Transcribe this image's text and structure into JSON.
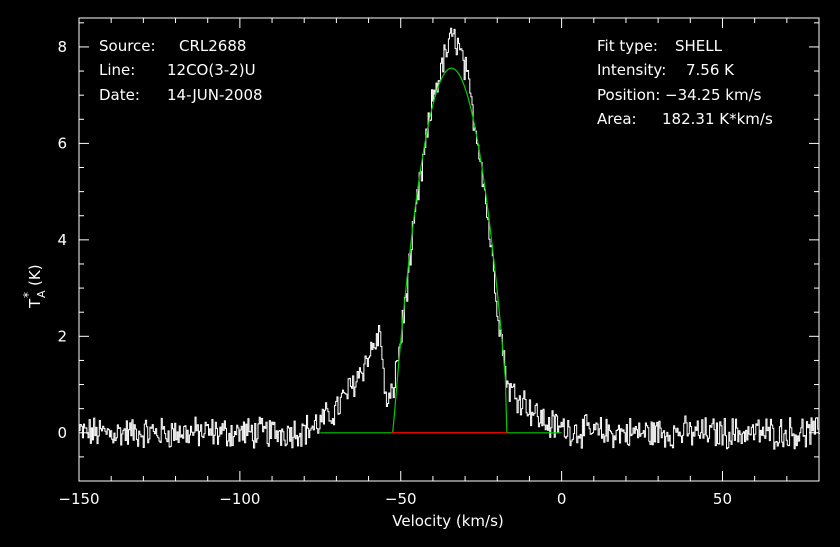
{
  "info_left": {
    "source_label": "Source:",
    "source_value": "CRL2688",
    "line_label": "Line:",
    "line_value": "12CO(3-2)U",
    "date_label": "Date:",
    "date_value": "14-JUN-2008"
  },
  "info_right": {
    "fit_label": "Fit type:",
    "fit_value": "SHELL",
    "intensity_label": "Intensity:",
    "intensity_value": "7.56 K",
    "position_label": "Position:",
    "position_value": "−34.25 km/s",
    "area_label": "Area:",
    "area_value": "182.31 K*km/s"
  },
  "chart_data": {
    "type": "line",
    "xlabel": "Velocity (km/s)",
    "ylabel_main": "T",
    "ylabel_sup": "*",
    "ylabel_sub": "A",
    "ylabel_unit": "(K)",
    "xlim": [
      -150,
      80
    ],
    "ylim": [
      -1,
      8.6
    ],
    "x_ticks": [
      -150,
      -100,
      -50,
      0,
      50
    ],
    "x_tick_labels": [
      "−150",
      "−100",
      "−50",
      "0",
      "50"
    ],
    "y_ticks": [
      0,
      2,
      4,
      6,
      8
    ],
    "y_tick_labels": [
      "0",
      "2",
      "4",
      "6",
      "8"
    ],
    "colors": {
      "spectrum": "#ffffff",
      "fit": "#00cc00",
      "baseline": "#ff0000",
      "axes": "#ffffff"
    },
    "series": [
      {
        "x": [
          -150,
          -140,
          -130,
          -120,
          -110,
          -100,
          -90,
          -80,
          -75,
          -70,
          -65,
          -60,
          -57,
          -56,
          -55,
          -53,
          -50,
          -45,
          -40,
          -35,
          -33,
          -30,
          -25,
          -20,
          -17,
          -15,
          -12,
          -10,
          -5,
          0,
          10,
          20,
          30,
          40,
          50,
          60,
          70,
          80
        ],
        "y": [
          0,
          0,
          0,
          0,
          0,
          0,
          0,
          0.05,
          0.2,
          0.5,
          1.0,
          1.6,
          2.0,
          1.9,
          0.6,
          0.7,
          2.0,
          4.8,
          7.0,
          8.1,
          8.2,
          7.5,
          5.6,
          2.6,
          1.0,
          0.8,
          0.7,
          0.5,
          0.2,
          0.1,
          0,
          0,
          0,
          0,
          0,
          0,
          0,
          0
        ]
      },
      {
        "x": [
          -75,
          -53,
          -50,
          -45,
          -40,
          -35,
          -33,
          -30,
          -25,
          -20,
          -17,
          -15,
          -5,
          0
        ],
        "y": [
          0,
          0,
          1.9,
          4.8,
          6.8,
          7.5,
          7.56,
          7.4,
          5.7,
          2.8,
          0,
          0,
          0,
          0
        ]
      },
      {
        "x": [
          -53,
          -17
        ],
        "y": [
          0,
          0
        ]
      }
    ]
  }
}
